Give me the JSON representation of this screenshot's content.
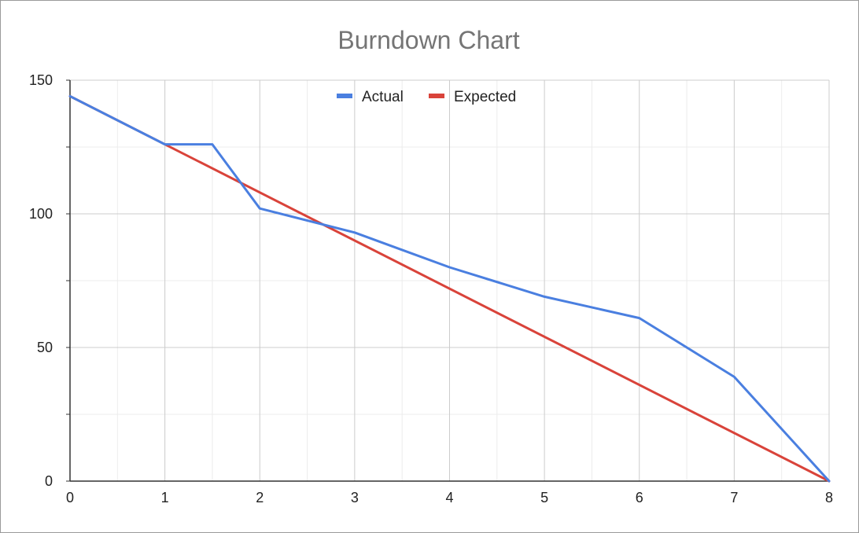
{
  "chart_data": {
    "type": "line",
    "title": "Burndown Chart",
    "xlabel": "",
    "ylabel": "",
    "xlim": [
      0,
      8
    ],
    "ylim": [
      0,
      150
    ],
    "x_ticks": [
      0,
      1,
      2,
      3,
      4,
      5,
      6,
      7,
      8
    ],
    "y_ticks": [
      0,
      50,
      100,
      150
    ],
    "grid": true,
    "legend_position": "top",
    "series": [
      {
        "name": "Actual",
        "color": "#4a7fe0",
        "points": [
          [
            0,
            144
          ],
          [
            1,
            126
          ],
          [
            1.5,
            126
          ],
          [
            2,
            102
          ],
          [
            3,
            93
          ],
          [
            4,
            80
          ],
          [
            5,
            69
          ],
          [
            6,
            61
          ],
          [
            7,
            39
          ],
          [
            8,
            0
          ]
        ]
      },
      {
        "name": "Expected",
        "color": "#d9433a",
        "points": [
          [
            0,
            144
          ],
          [
            8,
            0
          ]
        ]
      }
    ]
  }
}
